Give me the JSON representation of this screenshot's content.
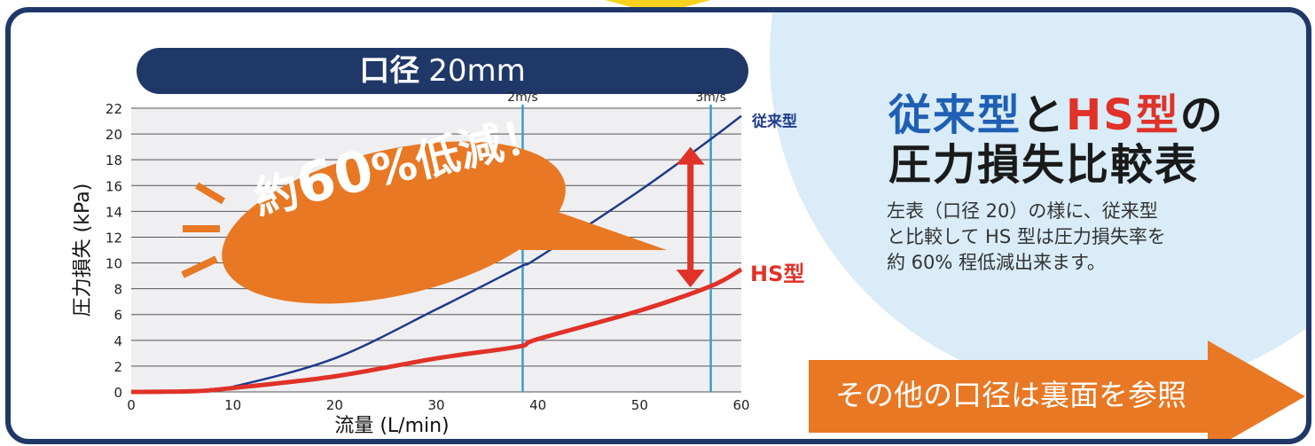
{
  "colors": {
    "frame": "#1f3868",
    "conventional": "#1f3a8a",
    "hs": "#e03228",
    "velocity_line": "#3a9ec9",
    "bubble": "#e87824",
    "cta": "#e87824",
    "circle": "#d9ecf8"
  },
  "chart_title": {
    "label": "口径",
    "size": "20mm"
  },
  "chart_data": {
    "type": "line",
    "xlabel": "流量 (L/min)",
    "ylabel": "圧力損失 (kPa)",
    "xlim": [
      0,
      60
    ],
    "ylim": [
      0,
      22
    ],
    "xticks": [
      0,
      10,
      20,
      30,
      40,
      50,
      60
    ],
    "yticks": [
      0,
      2,
      4,
      6,
      8,
      10,
      12,
      14,
      16,
      18,
      20,
      22
    ],
    "grid": "horizontal",
    "series": [
      {
        "name": "従来型",
        "x": [
          0,
          6.5,
          10,
          20,
          30,
          38,
          40,
          50,
          57,
          60
        ],
        "y": [
          0,
          0,
          0.4,
          2.6,
          6.4,
          9.6,
          10.4,
          15.6,
          19.6,
          21.4
        ]
      },
      {
        "name": "HS型",
        "x": [
          0,
          6,
          10,
          20,
          30,
          38,
          40,
          50,
          57,
          60
        ],
        "y": [
          0,
          0.05,
          0.3,
          1.2,
          2.6,
          3.5,
          4.1,
          6.3,
          8.2,
          9.5
        ]
      }
    ],
    "velocity_lines": [
      {
        "label": "2m/s",
        "x": 38.5
      },
      {
        "label": "3m/s",
        "x": 57
      }
    ],
    "annotation": {
      "text": "約60%低減！",
      "arrow_x": 55,
      "arrow_from": 19,
      "arrow_to": 8.1
    }
  },
  "heading": {
    "line1": [
      {
        "text": "従来型",
        "color": "blue"
      },
      {
        "text": "と",
        "color": "black"
      },
      {
        "text": "HS型",
        "color": "red"
      },
      {
        "text": "の",
        "color": "black"
      }
    ],
    "line2": "圧力損失比較表"
  },
  "body_lines": [
    "左表（口径 20）の様に、従来型",
    "と比較して HS 型は圧力損失率を",
    "約 60% 程低減出来ます。"
  ],
  "cta": {
    "label": "その他の口径は裏面を参照"
  }
}
